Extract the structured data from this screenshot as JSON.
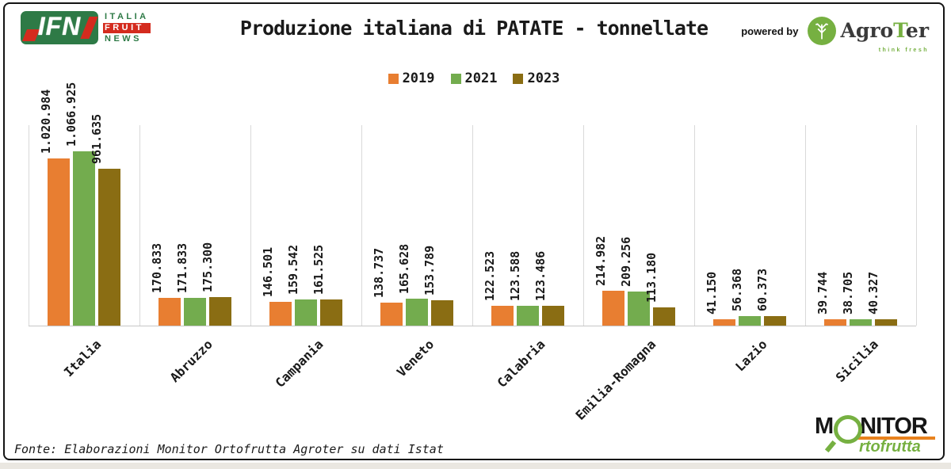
{
  "header": {
    "ifn_logo": {
      "acronym": "IFN",
      "line1": "ITALIA",
      "line2": "FRUIT",
      "line3": "NEWS"
    },
    "powered_by": "powered by",
    "agroter": {
      "name_head": "Agro",
      "name_t": "T",
      "name_tail": "er",
      "tagline": "think fresh"
    }
  },
  "chart_data": {
    "type": "bar",
    "title": "Produzione italiana di PATATE - tonnellate",
    "unit": "tonnellate",
    "categories": [
      "Italia",
      "Abruzzo",
      "Campania",
      "Veneto",
      "Calabria",
      "Emilia-Romagna",
      "Lazio",
      "Sicilia"
    ],
    "series": [
      {
        "name": "2019",
        "color": "#e87e31",
        "values": [
          1020984,
          170833,
          146501,
          138737,
          122523,
          214982,
          41150,
          39744
        ],
        "labels": [
          "1.020.984",
          "170.833",
          "146.501",
          "138.737",
          "122.523",
          "214.982",
          "41.150",
          "39.744"
        ]
      },
      {
        "name": "2021",
        "color": "#73ac4e",
        "values": [
          1066925,
          171833,
          159542,
          165628,
          123588,
          209256,
          56368,
          38705
        ],
        "labels": [
          "1.066.925",
          "171.833",
          "159.542",
          "165.628",
          "123.588",
          "209.256",
          "56.368",
          "38.705"
        ]
      },
      {
        "name": "2023",
        "color": "#8a6d13",
        "values": [
          961635,
          175300,
          161525,
          153789,
          123486,
          113180,
          60373,
          40327
        ],
        "labels": [
          "961.635",
          "175.300",
          "161.525",
          "153.789",
          "123.486",
          "113.180",
          "60.373",
          "40.327"
        ]
      }
    ],
    "legend_position": "top-center",
    "y_axis": "hidden",
    "grid": "vertical category separators",
    "data_label_rotation": 90,
    "category_label_rotation": 45
  },
  "footer": {
    "source": "Fonte: Elaborazioni Monitor Ortofrutta Agroter su dati Istat",
    "monitor_logo": {
      "word_start": "M",
      "word_end": "NITOR",
      "word2": "rtofrutta"
    }
  }
}
